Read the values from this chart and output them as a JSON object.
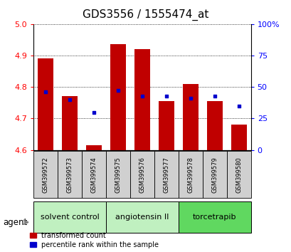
{
  "title": "GDS3556 / 1555474_at",
  "samples": [
    "GSM399572",
    "GSM399573",
    "GSM399574",
    "GSM399575",
    "GSM399576",
    "GSM399577",
    "GSM399578",
    "GSM399579",
    "GSM399580"
  ],
  "bar_values": [
    4.89,
    4.77,
    4.615,
    4.935,
    4.92,
    4.755,
    4.81,
    4.755,
    4.68
  ],
  "percentile_values": [
    46,
    40,
    30,
    47,
    43,
    43,
    41,
    43,
    35
  ],
  "bar_bottom": 4.6,
  "ylim_left": [
    4.6,
    5.0
  ],
  "ylim_right": [
    0,
    100
  ],
  "yticks_left": [
    4.6,
    4.7,
    4.8,
    4.9,
    5.0
  ],
  "yticks_right": [
    0,
    25,
    50,
    75,
    100
  ],
  "yticklabels_right": [
    "0",
    "25",
    "50",
    "75",
    "100%"
  ],
  "bar_color": "#c00000",
  "dot_color": "#0000cc",
  "tick_area_color": "#d0d0d0",
  "group_defs": [
    {
      "label": "solvent control",
      "start": 0,
      "end": 2,
      "color": "#c0f0c0"
    },
    {
      "label": "angiotensin II",
      "start": 3,
      "end": 5,
      "color": "#c0f0c0"
    },
    {
      "label": "torcetrapib",
      "start": 6,
      "end": 8,
      "color": "#60d860"
    }
  ],
  "legend_items": [
    {
      "label": "transformed count",
      "color": "#c00000"
    },
    {
      "label": "percentile rank within the sample",
      "color": "#0000cc"
    }
  ],
  "title_fontsize": 11,
  "axis_fontsize": 8,
  "sample_fontsize": 6,
  "group_fontsize": 8,
  "bar_width": 0.65
}
